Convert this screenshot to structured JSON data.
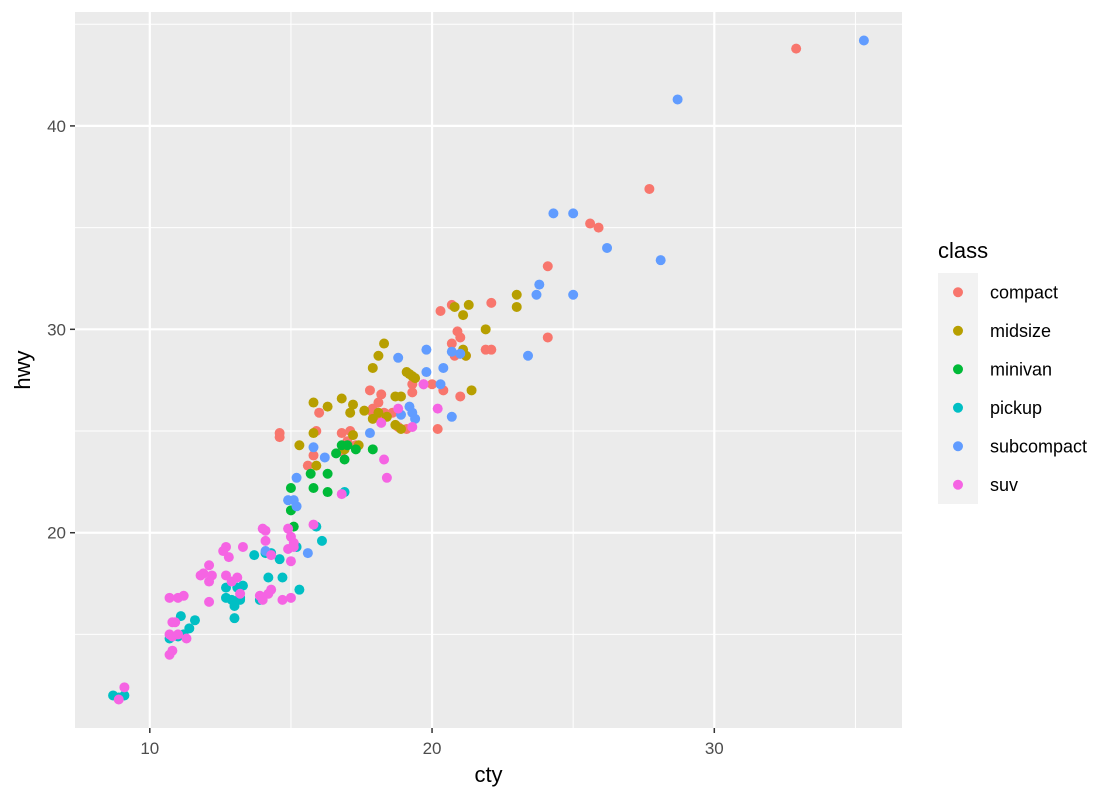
{
  "chart_data": {
    "type": "scatter",
    "xlabel": "cty",
    "ylabel": "hwy",
    "xlim": [
      7.35,
      36.65
    ],
    "ylim": [
      10.4,
      45.6
    ],
    "x_ticks": [
      10,
      20,
      30
    ],
    "y_ticks": [
      20,
      30,
      40
    ],
    "x_tick_labels": [
      "10",
      "20",
      "30"
    ],
    "y_tick_labels": [
      "20",
      "30",
      "40"
    ],
    "grid": true,
    "legend_position": "right",
    "legend_title": "class",
    "series": [
      {
        "name": "compact",
        "color": "#F8766D",
        "points": [
          [
            32.9,
            43.8
          ],
          [
            27.7,
            36.9
          ],
          [
            25.6,
            35.2
          ],
          [
            25.9,
            35.0
          ],
          [
            24.1,
            33.1
          ],
          [
            22.1,
            31.3
          ],
          [
            20.7,
            31.2
          ],
          [
            20.3,
            30.9
          ],
          [
            20.9,
            29.9
          ],
          [
            21.0,
            29.6
          ],
          [
            24.1,
            29.6
          ],
          [
            20.7,
            29.3
          ],
          [
            21.9,
            29.0
          ],
          [
            22.1,
            29.0
          ],
          [
            21.0,
            28.8
          ],
          [
            20.8,
            28.7
          ],
          [
            21.2,
            28.7
          ],
          [
            20.0,
            27.3
          ],
          [
            19.3,
            27.3
          ],
          [
            19.7,
            27.3
          ],
          [
            20.4,
            27.0
          ],
          [
            19.3,
            26.9
          ],
          [
            21.0,
            26.7
          ],
          [
            17.8,
            27.0
          ],
          [
            18.2,
            26.8
          ],
          [
            18.1,
            26.4
          ],
          [
            17.9,
            26.1
          ],
          [
            17.9,
            25.9
          ],
          [
            18.3,
            25.9
          ],
          [
            18.6,
            25.9
          ],
          [
            16.0,
            25.9
          ],
          [
            18.2,
            25.6
          ],
          [
            18.8,
            25.2
          ],
          [
            19.1,
            25.1
          ],
          [
            20.2,
            25.1
          ],
          [
            17.1,
            25.0
          ],
          [
            15.9,
            25.0
          ],
          [
            14.6,
            24.9
          ],
          [
            14.6,
            24.7
          ],
          [
            17.0,
            24.5
          ],
          [
            17.3,
            24.3
          ],
          [
            16.8,
            24.0
          ],
          [
            15.8,
            23.8
          ],
          [
            15.6,
            23.3
          ],
          [
            16.8,
            24.9
          ]
        ]
      },
      {
        "name": "midsize",
        "color": "#B79F00",
        "points": [
          [
            21.3,
            31.2
          ],
          [
            20.8,
            31.1
          ],
          [
            21.1,
            30.7
          ],
          [
            23.0,
            31.7
          ],
          [
            23.0,
            31.1
          ],
          [
            21.9,
            30.0
          ],
          [
            21.1,
            29.0
          ],
          [
            21.2,
            28.7
          ],
          [
            18.3,
            29.3
          ],
          [
            18.1,
            28.7
          ],
          [
            17.9,
            28.1
          ],
          [
            19.1,
            27.9
          ],
          [
            19.3,
            27.7
          ],
          [
            19.2,
            27.8
          ],
          [
            19.4,
            27.6
          ],
          [
            21.4,
            27.0
          ],
          [
            18.7,
            26.7
          ],
          [
            18.9,
            26.7
          ],
          [
            15.8,
            26.4
          ],
          [
            16.8,
            26.6
          ],
          [
            16.3,
            26.2
          ],
          [
            17.2,
            26.3
          ],
          [
            17.1,
            25.9
          ],
          [
            17.6,
            26.0
          ],
          [
            18.1,
            25.9
          ],
          [
            17.9,
            25.6
          ],
          [
            18.4,
            25.7
          ],
          [
            18.7,
            25.3
          ],
          [
            18.9,
            25.1
          ],
          [
            15.8,
            24.9
          ],
          [
            15.3,
            24.3
          ],
          [
            16.9,
            24.1
          ],
          [
            17.4,
            24.3
          ],
          [
            17.2,
            24.8
          ],
          [
            15.9,
            23.3
          ]
        ]
      },
      {
        "name": "minivan",
        "color": "#00BA38",
        "points": [
          [
            16.8,
            24.3
          ],
          [
            17.0,
            24.3
          ],
          [
            17.3,
            24.1
          ],
          [
            17.9,
            24.1
          ],
          [
            16.6,
            23.9
          ],
          [
            16.9,
            23.6
          ],
          [
            15.7,
            22.9
          ],
          [
            16.3,
            22.9
          ],
          [
            15.8,
            22.2
          ],
          [
            16.3,
            22.0
          ],
          [
            15.0,
            22.2
          ],
          [
            15.0,
            21.1
          ],
          [
            15.1,
            20.3
          ]
        ]
      },
      {
        "name": "pickup",
        "color": "#00BFC4",
        "points": [
          [
            16.9,
            22.0
          ],
          [
            15.9,
            20.3
          ],
          [
            16.1,
            19.6
          ],
          [
            15.2,
            19.3
          ],
          [
            13.7,
            18.9
          ],
          [
            14.1,
            19.0
          ],
          [
            14.3,
            19.0
          ],
          [
            14.6,
            18.7
          ],
          [
            14.2,
            17.8
          ],
          [
            14.7,
            17.8
          ],
          [
            15.3,
            17.2
          ],
          [
            12.7,
            17.3
          ],
          [
            13.1,
            17.3
          ],
          [
            13.3,
            17.4
          ],
          [
            12.7,
            16.8
          ],
          [
            12.9,
            16.7
          ],
          [
            13.2,
            16.7
          ],
          [
            13.2,
            16.8
          ],
          [
            13.9,
            16.7
          ],
          [
            13.0,
            16.4
          ],
          [
            11.6,
            15.7
          ],
          [
            11.1,
            15.9
          ],
          [
            11.4,
            15.3
          ],
          [
            11.2,
            15.0
          ],
          [
            11.0,
            14.9
          ],
          [
            10.7,
            14.8
          ],
          [
            13.0,
            15.8
          ],
          [
            8.7,
            12.0
          ],
          [
            8.9,
            11.9
          ],
          [
            9.1,
            12.0
          ]
        ]
      },
      {
        "name": "subcompact",
        "color": "#619CFF",
        "points": [
          [
            35.3,
            44.2
          ],
          [
            28.7,
            41.3
          ],
          [
            24.3,
            35.7
          ],
          [
            25.0,
            35.7
          ],
          [
            26.2,
            34.0
          ],
          [
            28.1,
            33.4
          ],
          [
            23.8,
            32.2
          ],
          [
            23.7,
            31.7
          ],
          [
            25.0,
            31.7
          ],
          [
            19.8,
            29.0
          ],
          [
            21.0,
            28.8
          ],
          [
            18.8,
            28.6
          ],
          [
            20.7,
            28.9
          ],
          [
            23.4,
            28.7
          ],
          [
            20.4,
            28.1
          ],
          [
            19.8,
            27.9
          ],
          [
            20.3,
            27.3
          ],
          [
            19.2,
            26.2
          ],
          [
            19.3,
            25.9
          ],
          [
            18.9,
            25.8
          ],
          [
            19.4,
            25.6
          ],
          [
            20.7,
            25.7
          ],
          [
            17.8,
            24.9
          ],
          [
            15.8,
            24.2
          ],
          [
            16.2,
            23.7
          ],
          [
            15.2,
            22.7
          ],
          [
            14.9,
            21.6
          ],
          [
            15.1,
            21.6
          ],
          [
            15.2,
            21.3
          ],
          [
            15.6,
            19.0
          ],
          [
            14.1,
            19.1
          ]
        ]
      },
      {
        "name": "suv",
        "color": "#F564E3",
        "points": [
          [
            18.3,
            23.6
          ],
          [
            18.4,
            22.7
          ],
          [
            16.8,
            21.9
          ],
          [
            14.0,
            20.2
          ],
          [
            14.1,
            20.1
          ],
          [
            14.9,
            20.2
          ],
          [
            15.8,
            20.4
          ],
          [
            15.0,
            19.8
          ],
          [
            15.1,
            19.5
          ],
          [
            13.3,
            19.3
          ],
          [
            12.7,
            19.3
          ],
          [
            14.1,
            19.6
          ],
          [
            12.6,
            19.1
          ],
          [
            14.9,
            19.2
          ],
          [
            15.1,
            19.3
          ],
          [
            14.3,
            18.9
          ],
          [
            12.1,
            18.4
          ],
          [
            12.8,
            18.8
          ],
          [
            15.0,
            18.6
          ],
          [
            11.9,
            18.0
          ],
          [
            12.2,
            17.9
          ],
          [
            11.8,
            17.9
          ],
          [
            12.7,
            17.9
          ],
          [
            13.1,
            17.8
          ],
          [
            12.1,
            17.6
          ],
          [
            12.9,
            17.6
          ],
          [
            14.3,
            17.2
          ],
          [
            14.2,
            17.0
          ],
          [
            13.9,
            16.9
          ],
          [
            14.7,
            16.7
          ],
          [
            15.0,
            16.8
          ],
          [
            12.1,
            16.6
          ],
          [
            14.0,
            16.7
          ],
          [
            10.7,
            16.8
          ],
          [
            11.0,
            16.8
          ],
          [
            11.2,
            16.9
          ],
          [
            10.8,
            15.6
          ],
          [
            10.9,
            15.6
          ],
          [
            10.7,
            15.0
          ],
          [
            10.8,
            14.9
          ],
          [
            11.0,
            15.0
          ],
          [
            11.3,
            14.8
          ],
          [
            10.8,
            14.2
          ],
          [
            10.7,
            14.0
          ],
          [
            9.1,
            12.4
          ],
          [
            8.9,
            11.8
          ],
          [
            19.3,
            25.2
          ],
          [
            20.2,
            26.1
          ],
          [
            19.7,
            27.3
          ],
          [
            18.8,
            26.1
          ],
          [
            18.2,
            25.4
          ],
          [
            13.2,
            17.0
          ]
        ]
      }
    ]
  }
}
